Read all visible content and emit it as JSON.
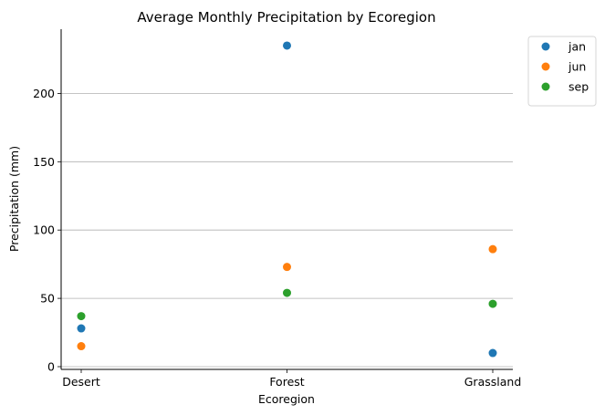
{
  "chart_data": {
    "type": "scatter",
    "title": "Average Monthly Precipitation by Ecoregion",
    "xlabel": "Ecoregion",
    "ylabel": "Precipitation (mm)",
    "categories": [
      "Desert",
      "Forest",
      "Grassland"
    ],
    "yticks": [
      0,
      50,
      100,
      150,
      200
    ],
    "ylim": [
      -2,
      247
    ],
    "grid": "y",
    "legend_position": "outside-top-right",
    "series": [
      {
        "name": "jan",
        "color": "#1f77b4",
        "values": [
          28,
          235,
          10
        ]
      },
      {
        "name": "jun",
        "color": "#ff7f0e",
        "values": [
          15,
          73,
          86
        ]
      },
      {
        "name": "sep",
        "color": "#2ca02c",
        "values": [
          37,
          54,
          46
        ]
      }
    ]
  }
}
